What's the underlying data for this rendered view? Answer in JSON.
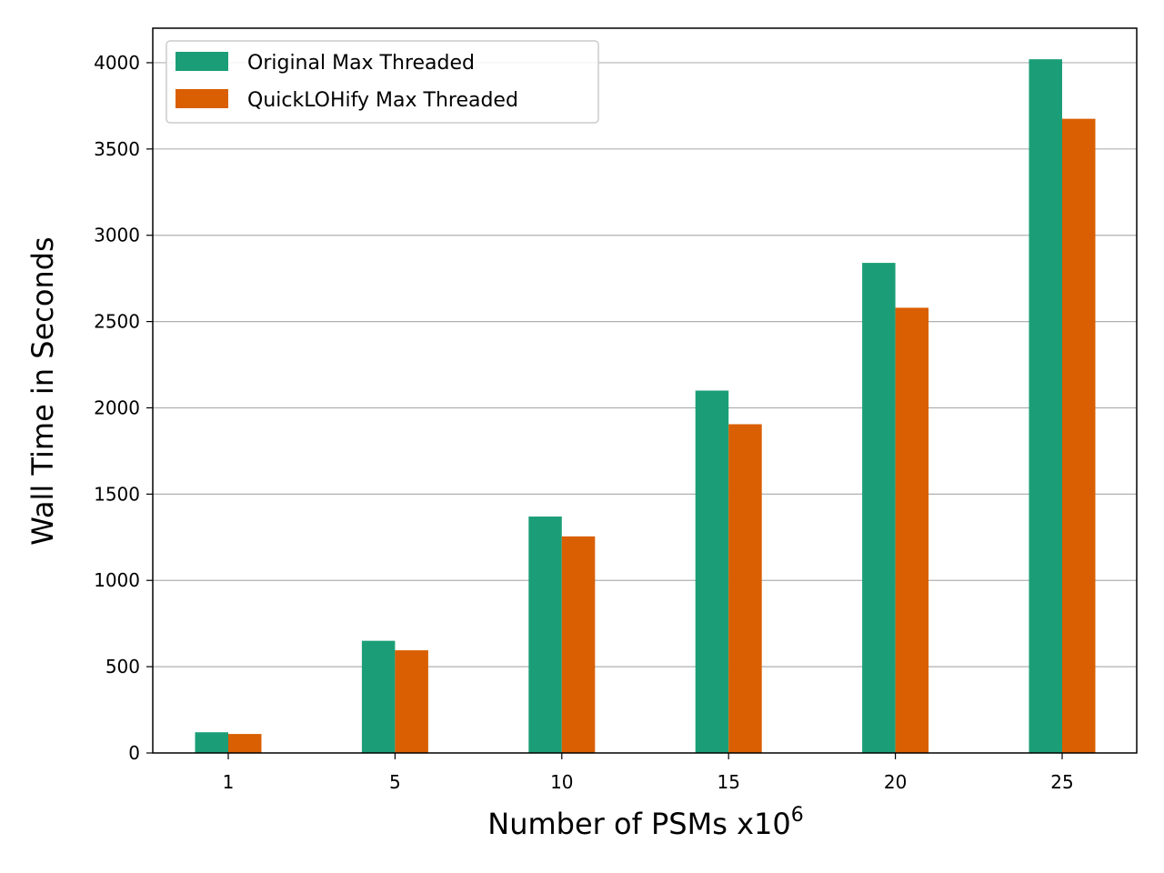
{
  "chart_data": {
    "type": "bar",
    "categories": [
      "1",
      "5",
      "10",
      "15",
      "20",
      "25"
    ],
    "series": [
      {
        "name": "Original Max Threaded",
        "color": "#1b9e77",
        "values": [
          120,
          650,
          1370,
          2100,
          2840,
          4020
        ]
      },
      {
        "name": "QuickLOHify Max Threaded",
        "color": "#d95f02",
        "values": [
          110,
          595,
          1255,
          1905,
          2580,
          3675
        ]
      }
    ],
    "xlabel": "Number of PSMs x10",
    "xlabel_superscript": "6",
    "ylabel": "Wall Time in Seconds",
    "ylim": [
      0,
      4200
    ],
    "yticks": [
      0,
      500,
      1000,
      1500,
      2000,
      2500,
      3000,
      3500,
      4000
    ],
    "grid": "horizontal",
    "legend_position": "top-left"
  }
}
